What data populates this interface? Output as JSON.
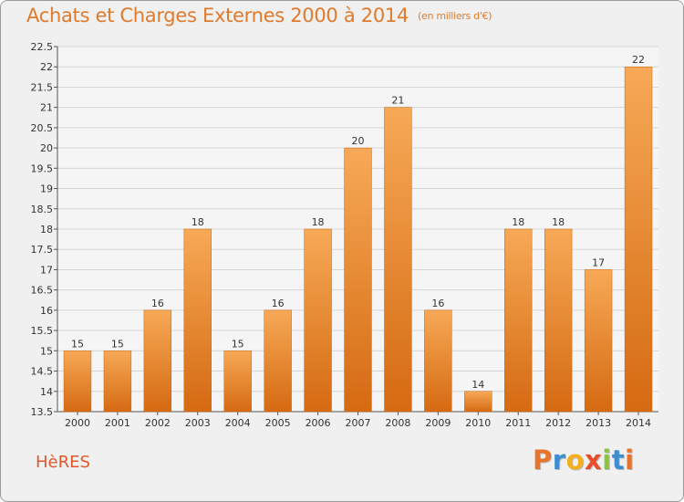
{
  "header": {
    "title": "Achats et Charges Externes 2000 à 2014",
    "units": "(en milliers d'€)"
  },
  "commune": "HèRES",
  "logo": {
    "text": "Proxiti",
    "letter_colors": [
      "#e8732a",
      "#3d8ed1",
      "#f2b01e",
      "#e84e2a",
      "#8cc43d",
      "#3d8ed1",
      "#e8732a"
    ]
  },
  "colors": {
    "bar_light": "#f7a957",
    "bar_dark": "#d56a12",
    "title": "#e07a2c",
    "background": "#f0f0f0"
  },
  "chart_data": {
    "type": "bar",
    "title": "Achats et Charges Externes 2000 à 2014",
    "subtitle": "(en milliers d'€)",
    "xlabel": "",
    "ylabel": "",
    "categories": [
      "2000",
      "2001",
      "2002",
      "2003",
      "2004",
      "2005",
      "2006",
      "2007",
      "2008",
      "2009",
      "2010",
      "2011",
      "2012",
      "2013",
      "2014"
    ],
    "values": [
      15,
      15,
      16,
      18,
      15,
      16,
      18,
      20,
      21,
      16,
      14,
      18,
      18,
      17,
      22
    ],
    "data_labels": [
      "15",
      "15",
      "16",
      "18",
      "15",
      "16",
      "18",
      "20",
      "21",
      "16",
      "14",
      "18",
      "18",
      "17",
      "22"
    ],
    "ylim": [
      13.5,
      22.5
    ],
    "yticks": [
      13.5,
      14,
      14.5,
      15,
      15.5,
      16,
      16.5,
      17,
      17.5,
      18,
      18.5,
      19,
      19.5,
      20,
      20.5,
      21,
      21.5,
      22,
      22.5
    ],
    "ytick_labels": [
      "13.5",
      "14",
      "14.5",
      "15",
      "15.5",
      "16",
      "16.5",
      "17",
      "17.5",
      "18",
      "18.5",
      "19",
      "19.5",
      "20",
      "20.5",
      "21",
      "21.5",
      "22",
      "22.5"
    ],
    "grid": true,
    "legend": "none"
  }
}
